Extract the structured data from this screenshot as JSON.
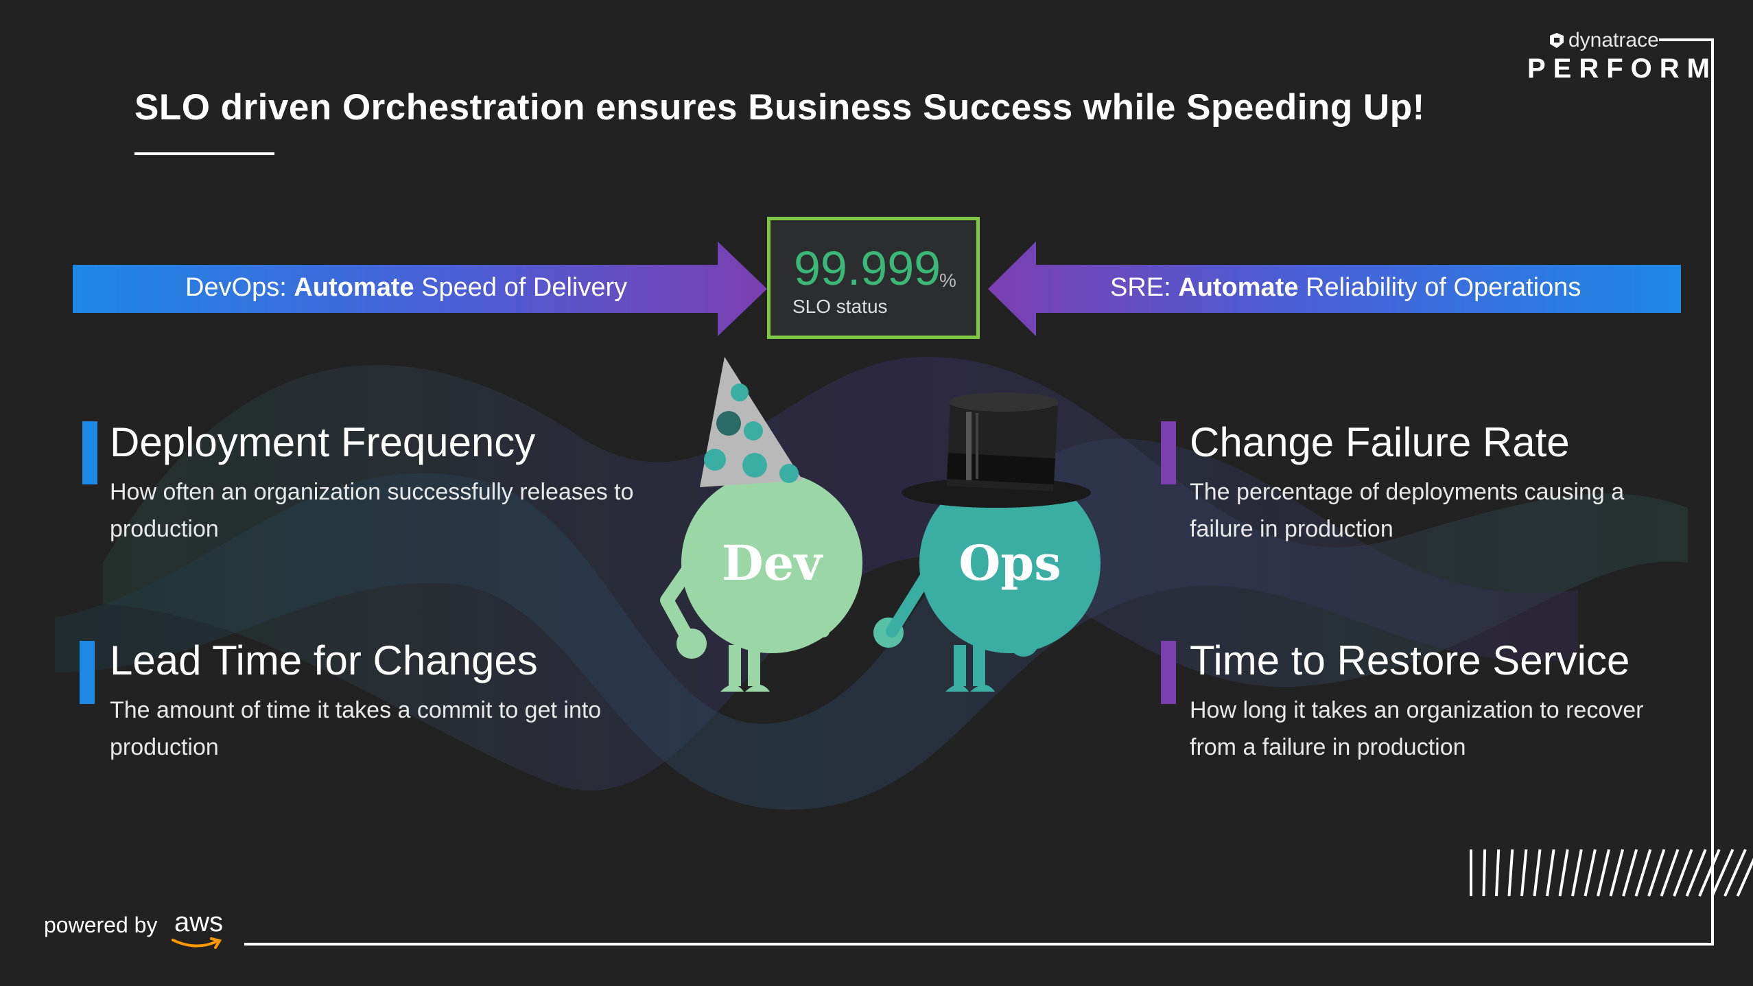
{
  "title": "SLO driven Orchestration ensures Business Success while Speeding Up!",
  "brand": {
    "small": "dynatrace",
    "big": "PERFORM"
  },
  "banner_left": {
    "prefix": "DevOps: ",
    "bold": "Automate",
    "suffix": " Speed of Delivery"
  },
  "banner_right": {
    "prefix": "SRE: ",
    "bold": "Automate",
    "suffix": " Reliability of Operations"
  },
  "slo": {
    "value": "99.999",
    "unit": "%",
    "label": "SLO status"
  },
  "metrics": [
    {
      "title": "Deployment Frequency",
      "desc": "How often an organization successfully releases to production",
      "color": "#1e88e5"
    },
    {
      "title": "Lead Time for Changes",
      "desc": "The amount of time it takes a commit to get into production",
      "color": "#1e88e5"
    },
    {
      "title": "Change Failure Rate",
      "desc": "The percentage of deployments causing a failure in production",
      "color": "#7b3fb0"
    },
    {
      "title": "Time to Restore Service",
      "desc": "How long it takes an organization to recover from a failure in production",
      "color": "#7b3fb0"
    }
  ],
  "mascots": {
    "dev": "Dev",
    "ops": "Ops"
  },
  "footer": {
    "powered_by": "powered by",
    "aws": "aws"
  },
  "colors": {
    "blue": "#1e88e5",
    "purple": "#7b3fb0",
    "slo_green": "#7ec843",
    "dev": "#9bd6a6",
    "ops": "#3aaea3"
  }
}
